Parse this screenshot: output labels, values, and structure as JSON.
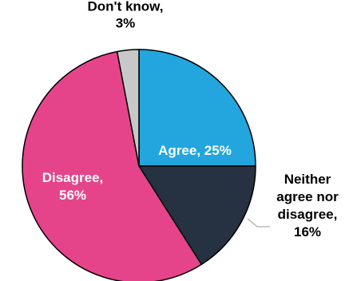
{
  "chart_data": {
    "type": "pie",
    "title": "",
    "start_angle": "12 o'clock",
    "direction": "clockwise",
    "slices": [
      {
        "name": "Agree",
        "value": 25,
        "color": "#22a6dd",
        "label_lines": [
          "Agree, 25%"
        ],
        "label_placement": "inside",
        "label_color": "#ffffff"
      },
      {
        "name": "Neither agree nor disagree",
        "value": 16,
        "color": "#263241",
        "label_lines": [
          "Neither",
          "agree nor",
          "disagree,",
          "16%"
        ],
        "label_placement": "outside-right",
        "label_color": "#000000"
      },
      {
        "name": "Disagree",
        "value": 56,
        "color": "#e5448a",
        "label_lines": [
          "Disagree,",
          "56%"
        ],
        "label_placement": "inside",
        "label_color": "#ffffff"
      },
      {
        "name": "Don't know",
        "value": 3,
        "color": "#c8c8c8",
        "label_lines": [
          "Don't know,",
          "3%"
        ],
        "label_placement": "outside-top",
        "label_color": "#000000"
      }
    ],
    "slice_border_color": "#000000"
  }
}
